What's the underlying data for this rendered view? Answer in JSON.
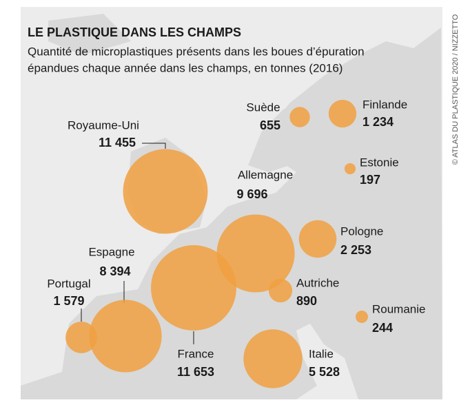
{
  "chart_data": {
    "type": "bubble",
    "title": "LE PLASTIQUE DANS LES CHAMPS",
    "subtitle": [
      "Quantité de microplastiques présents dans les boues d’épuration",
      "épandues chaque année dans les champs, en tonnes (2016)"
    ],
    "credit": "© ATLAS DU PLASTIQUE 2020 / NIZZETTO",
    "categories": [
      "Royaume-Uni",
      "France",
      "Allemagne",
      "Espagne",
      "Italie",
      "Pologne",
      "Portugal",
      "Finlande",
      "Autriche",
      "Suède",
      "Roumanie",
      "Estonie"
    ],
    "values": [
      11455,
      11653,
      9696,
      8394,
      5528,
      2253,
      1579,
      1234,
      890,
      655,
      244,
      197
    ],
    "value_labels": [
      "11 455",
      "11 653",
      "9 696",
      "8 394",
      "5 528",
      "2 253",
      "1 579",
      "1 234",
      "890",
      "655",
      "244",
      "197"
    ],
    "color": "#f0a041"
  }
}
